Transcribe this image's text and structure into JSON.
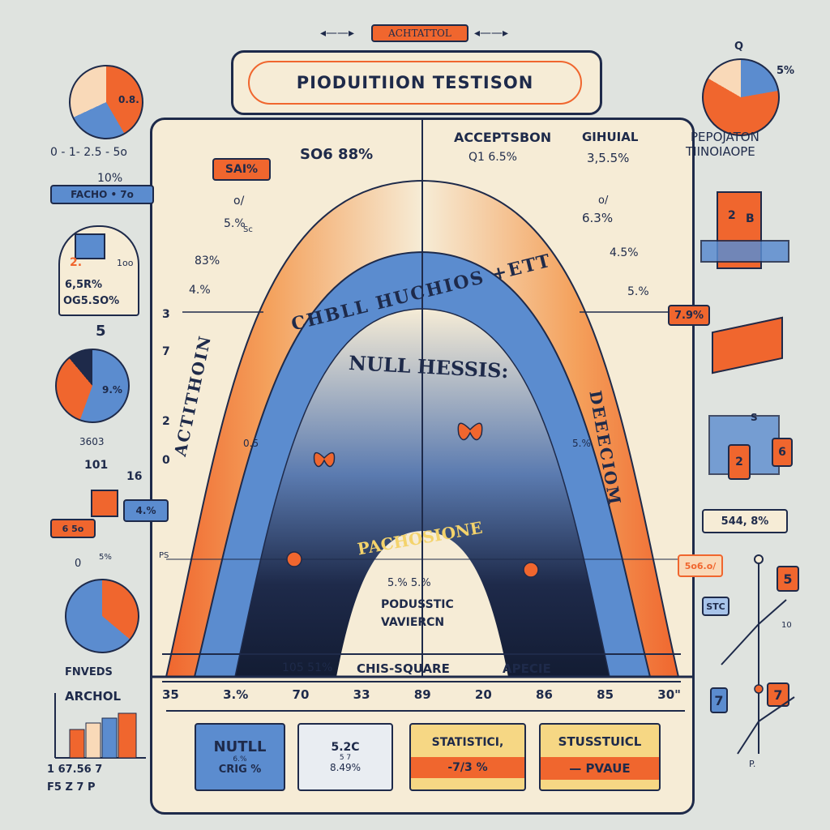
{
  "banner": {
    "top_tag": "ACHTATTOL",
    "title": "PIODUITIION TESTISON"
  },
  "curve": {
    "outer_left_label": "ACTITHOIN",
    "outer_right_label": "DEEECIOM",
    "blue_band_label": "CHBLL HUCHIOS +ETT",
    "inner_label": "NULL HESSIS:",
    "dark_label": "PACHOSIONE",
    "center_values": "5.% 5.%",
    "center_caption_1": "PODUSSTIC",
    "center_caption_2": "VAVIERCN"
  },
  "annotations": {
    "sat": "SAI%",
    "so_pct": "SO6 88%",
    "accept": "ACCEPTSBON",
    "gihual": "GIHUIAL",
    "q1": "Q1 6.5%",
    "v355": "3,5.5%",
    "o1": "o/",
    "v55": "5.%",
    "sc": "Sc",
    "v83": "83%",
    "v4": "4.%",
    "v3": "3",
    "v7": "7",
    "v2": "2",
    "v0": "0",
    "ps": "PS",
    "o05": "0.5",
    "o2": "o/",
    "v63": "6.3%",
    "v45": "4.5%",
    "v5pct": "5.%",
    "tag79": "7.9%",
    "v5dot": "5.%",
    "sodot": "5o6.o/"
  },
  "bottom_axis": {
    "ticks": [
      "35",
      "3.%",
      "70",
      "33",
      "89",
      "20",
      "86",
      "85",
      "30\""
    ],
    "labels": [
      "105 51%",
      "CHIS-SQUARE",
      "APECIE"
    ]
  },
  "bottom_cards": [
    {
      "title": "NUTLL",
      "sub": "CRIG %",
      "small": "6.% "
    },
    {
      "title": "5.2C",
      "sub": "8.49%",
      "small": "5 7"
    },
    {
      "title": "STATISTICI,",
      "sub": "-7/3 %"
    },
    {
      "title": "STUSSTUICL",
      "sub": "— PVAUE"
    }
  ],
  "left_panel": {
    "pie_label": "0.8.",
    "range_text": "0 - 1- 2.5 - 5o",
    "pct10": "10%",
    "factor_tag": "FACHO • 7o",
    "card_num": "2.",
    "card_side": "1oo",
    "stat_1": "6,5R%",
    "stat_2": "OG5.SO%",
    "five": "5",
    "pie2_label": "9.%",
    "v3603": "3603",
    "v101": "101",
    "v16": "16",
    "tag655": "6 5o",
    "tag4pct": "4.%",
    "zero": "0",
    "small_sn": "5%",
    "fnveds": "FNVEDS",
    "archol": "ARCHOL",
    "bar_1": "1 67.56 7",
    "bar_2": "F5 Z 7 P"
  },
  "right_panel": {
    "q": "Q",
    "pie_label": "5%",
    "pop_title": "PEPOJATON",
    "pop_sub": "TIINOIAOPE",
    "block_2": "2",
    "block_b": "B",
    "tag544": "544, 8%",
    "s_label": "S",
    "n_label": "2",
    "n_label2": "6",
    "five": "5",
    "stc": "STC",
    "seven_a": "7",
    "seven_b": "7",
    "ten": "10",
    "p": "P."
  },
  "colors": {
    "orange": "#f0662e",
    "blue": "#5b8ccf",
    "navy": "#1e2a4a",
    "cream": "#f6ecd6",
    "bg": "#dfe3df"
  }
}
